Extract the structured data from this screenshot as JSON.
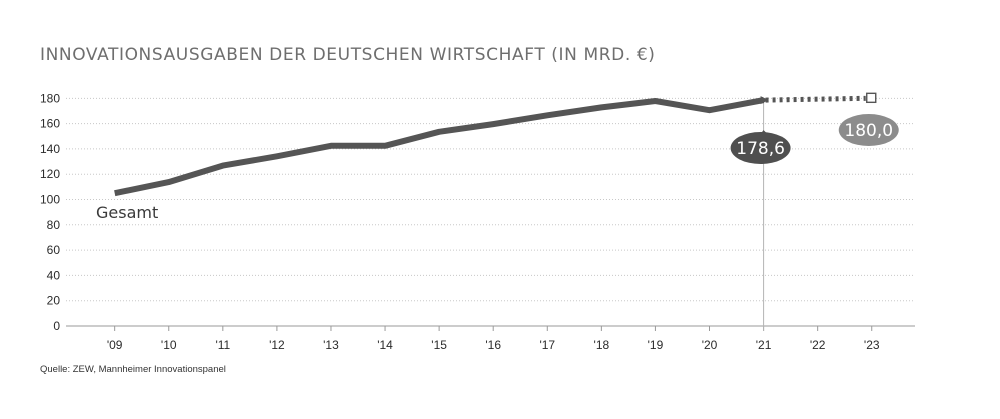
{
  "chart_data": {
    "type": "line",
    "title": "INNOVATIONSAUSGABEN DER DEUTSCHEN WIRTSCHAFT (IN MRD. €)",
    "source": "Quelle: ZEW, Mannheimer Innovationspanel",
    "x_ticks": [
      "'09",
      "'10",
      "'11",
      "'12",
      "'13",
      "'14",
      "'15",
      "'16",
      "'17",
      "'18",
      "'19",
      "'20",
      "'21",
      "'22",
      "'23"
    ],
    "y_ticks": [
      "0",
      "20",
      "40",
      "60",
      "80",
      "100",
      "120",
      "140",
      "160",
      "180"
    ],
    "ylim": [
      0,
      185
    ],
    "xlim": [
      2008.1,
      2023.8
    ],
    "grid": true,
    "series": [
      {
        "name": "Gesamt",
        "x": [
          2009,
          2010,
          2011,
          2012,
          2013,
          2014,
          2015,
          2016,
          2017,
          2018,
          2019,
          2020,
          2021
        ],
        "values": [
          105,
          113.8,
          126.8,
          134.2,
          142.5,
          142.5,
          153.5,
          159.6,
          166.6,
          172.8,
          177.9,
          170.6,
          178.6
        ]
      }
    ],
    "forecast": {
      "x": [
        2021,
        2023
      ],
      "values": [
        178.6,
        180.0
      ]
    },
    "annotations": [
      {
        "label": "178,6",
        "x": 2021,
        "value": 178.6,
        "color": "#4f4f4f"
      },
      {
        "label": "180,0",
        "x": 2023,
        "value": 180.0,
        "color": "#8c8c8c"
      }
    ],
    "colors": {
      "line": "#555555",
      "forecast": "#555555",
      "grid": "#c8c8c8",
      "reference_line": "#b5b5b5"
    }
  }
}
